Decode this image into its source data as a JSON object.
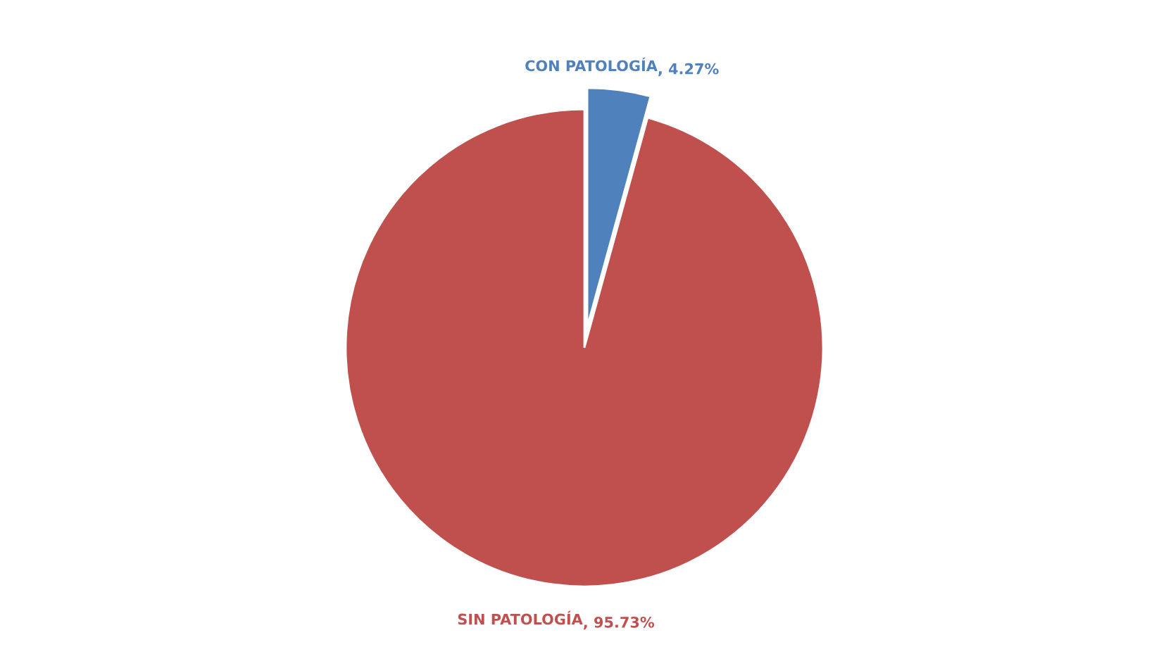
{
  "chart_data": {
    "type": "pie",
    "categories": [
      "CON PATOLOGÍA",
      "SIN PATOLOGÍA"
    ],
    "values": [
      4.27,
      95.73
    ],
    "colors": [
      "#4f81bd",
      "#c0504d"
    ],
    "value_labels": [
      ", 4.27%",
      ", 95.73%"
    ]
  }
}
